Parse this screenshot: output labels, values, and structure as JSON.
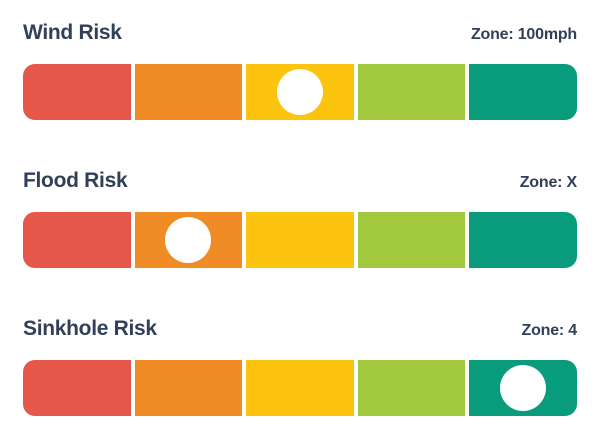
{
  "page": {
    "background_color": "#FFFFFF",
    "text_color": "#323F58"
  },
  "scale": {
    "colors": [
      "#E4574A",
      "#F08C26",
      "#FCC40E",
      "#A2C93D",
      "#089C7C"
    ],
    "color_names": [
      "red",
      "orange",
      "yellow",
      "light-green",
      "green"
    ],
    "marker_color": "#FFFFFF",
    "levels": 5
  },
  "sections": [
    {
      "title": "Wind Risk",
      "zone_label": "Zone: 100mph",
      "active_segment": 2
    },
    {
      "title": "Flood Risk",
      "zone_label": "Zone: X",
      "active_segment": 1
    },
    {
      "title": "Sinkhole Risk",
      "zone_label": "Zone: 4",
      "active_segment": 4
    }
  ],
  "chart_data": [
    {
      "type": "gauge",
      "title": "Wind Risk",
      "annotation": "Zone: 100mph",
      "levels": 5,
      "active_level": 3,
      "level_colors": [
        "#E4574A",
        "#F08C26",
        "#FCC40E",
        "#A2C93D",
        "#089C7C"
      ],
      "marker": "white-dot-on-yellow-segment"
    },
    {
      "type": "gauge",
      "title": "Flood Risk",
      "annotation": "Zone: X",
      "levels": 5,
      "active_level": 2,
      "level_colors": [
        "#E4574A",
        "#F08C26",
        "#FCC40E",
        "#A2C93D",
        "#089C7C"
      ],
      "marker": "white-dot-on-orange-segment"
    },
    {
      "type": "gauge",
      "title": "Sinkhole Risk",
      "annotation": "Zone: 4",
      "levels": 5,
      "active_level": 5,
      "level_colors": [
        "#E4574A",
        "#F08C26",
        "#FCC40E",
        "#A2C93D",
        "#089C7C"
      ],
      "marker": "white-dot-on-green-segment"
    }
  ]
}
